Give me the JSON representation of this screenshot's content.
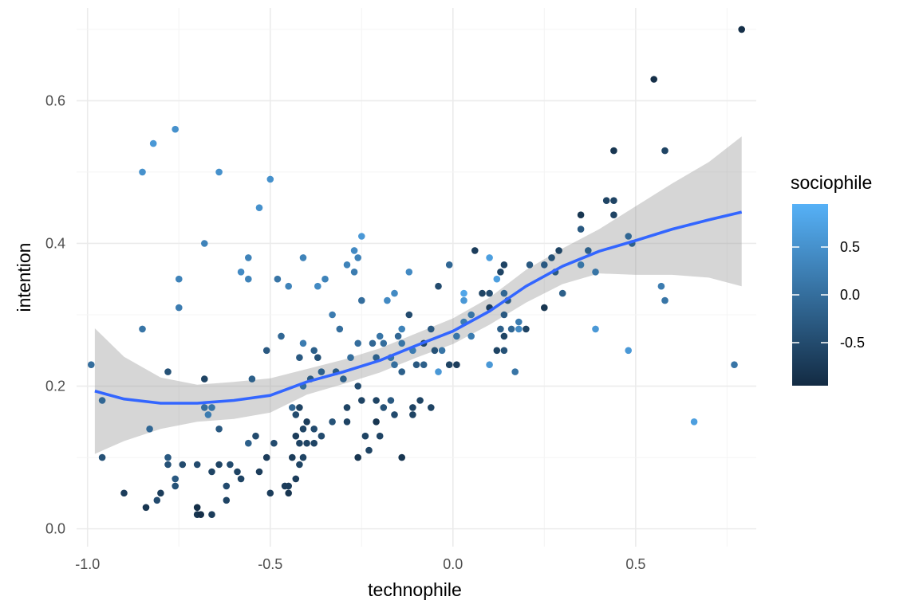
{
  "chart_data": {
    "type": "scatter",
    "xlabel": "technophile",
    "ylabel": "intention",
    "xlim": [
      -1.03,
      0.83
    ],
    "ylim": [
      -0.025,
      0.73
    ],
    "x_ticks": [
      -1.0,
      -0.5,
      0.0,
      0.5
    ],
    "x_tick_labels": [
      "-1.0",
      "-0.5",
      "0.0",
      "0.5"
    ],
    "y_ticks": [
      0.0,
      0.2,
      0.4,
      0.6
    ],
    "y_tick_labels": [
      "0.0",
      "0.2",
      "0.4",
      "0.6"
    ],
    "grid": true,
    "legend": {
      "title": "sociophile",
      "position": "right",
      "range": [
        -0.95,
        0.95
      ],
      "ticks": [
        0.5,
        0.0,
        -0.5
      ],
      "tick_labels": [
        "0.5",
        "0.0",
        "-0.5"
      ],
      "color_low": "#132B43",
      "color_high": "#56B1F7"
    },
    "smooth_color": "#3366FF",
    "ribbon_color": "#999999",
    "points": [
      {
        "x": 0.79,
        "y": 0.7,
        "c": -0.9
      },
      {
        "x": 0.55,
        "y": 0.63,
        "c": -0.9
      },
      {
        "x": 0.58,
        "y": 0.53,
        "c": -0.6
      },
      {
        "x": 0.44,
        "y": 0.53,
        "c": -0.8
      },
      {
        "x": 0.44,
        "y": 0.46,
        "c": -0.6
      },
      {
        "x": 0.42,
        "y": 0.46,
        "c": -0.6
      },
      {
        "x": 0.44,
        "y": 0.44,
        "c": -0.6
      },
      {
        "x": 0.35,
        "y": 0.44,
        "c": -0.8
      },
      {
        "x": 0.35,
        "y": 0.42,
        "c": -0.3
      },
      {
        "x": 0.48,
        "y": 0.41,
        "c": -0.1
      },
      {
        "x": 0.49,
        "y": 0.4,
        "c": -0.2
      },
      {
        "x": 0.37,
        "y": 0.39,
        "c": -0.2
      },
      {
        "x": 0.35,
        "y": 0.37,
        "c": 0.1
      },
      {
        "x": 0.29,
        "y": 0.39,
        "c": -0.6
      },
      {
        "x": 0.27,
        "y": 0.38,
        "c": -0.4
      },
      {
        "x": 0.25,
        "y": 0.37,
        "c": -0.3
      },
      {
        "x": 0.28,
        "y": 0.36,
        "c": -0.3
      },
      {
        "x": 0.21,
        "y": 0.37,
        "c": -0.3
      },
      {
        "x": 0.39,
        "y": 0.36,
        "c": 0.1
      },
      {
        "x": 0.57,
        "y": 0.34,
        "c": 0.2
      },
      {
        "x": 0.58,
        "y": 0.32,
        "c": 0.1
      },
      {
        "x": 0.3,
        "y": 0.33,
        "c": -0.2
      },
      {
        "x": 0.25,
        "y": 0.31,
        "c": -0.8
      },
      {
        "x": 0.39,
        "y": 0.28,
        "c": 0.6
      },
      {
        "x": 0.48,
        "y": 0.25,
        "c": 0.6
      },
      {
        "x": 0.77,
        "y": 0.23,
        "c": 0.1
      },
      {
        "x": 0.66,
        "y": 0.15,
        "c": 0.7
      },
      {
        "x": 0.06,
        "y": 0.39,
        "c": -0.7
      },
      {
        "x": 0.1,
        "y": 0.38,
        "c": 0.7
      },
      {
        "x": 0.14,
        "y": 0.37,
        "c": -0.6
      },
      {
        "x": 0.13,
        "y": 0.36,
        "c": -0.6
      },
      {
        "x": 0.12,
        "y": 0.35,
        "c": 0.7
      },
      {
        "x": 0.08,
        "y": 0.33,
        "c": -0.6
      },
      {
        "x": 0.1,
        "y": 0.33,
        "c": -0.5
      },
      {
        "x": 0.14,
        "y": 0.33,
        "c": -0.1
      },
      {
        "x": 0.15,
        "y": 0.32,
        "c": -0.3
      },
      {
        "x": 0.03,
        "y": 0.33,
        "c": 0.8
      },
      {
        "x": 0.03,
        "y": 0.32,
        "c": 0.6
      },
      {
        "x": 0.1,
        "y": 0.31,
        "c": -0.7
      },
      {
        "x": 0.14,
        "y": 0.3,
        "c": -0.3
      },
      {
        "x": 0.05,
        "y": 0.3,
        "c": 0.1
      },
      {
        "x": 0.03,
        "y": 0.29,
        "c": 0.2
      },
      {
        "x": 0.13,
        "y": 0.28,
        "c": -0.2
      },
      {
        "x": 0.18,
        "y": 0.29,
        "c": 0.2
      },
      {
        "x": 0.16,
        "y": 0.28,
        "c": -0.1
      },
      {
        "x": 0.18,
        "y": 0.28,
        "c": 0.4
      },
      {
        "x": 0.2,
        "y": 0.28,
        "c": -0.6
      },
      {
        "x": 0.14,
        "y": 0.27,
        "c": -0.6
      },
      {
        "x": 0.05,
        "y": 0.27,
        "c": 0.2
      },
      {
        "x": 0.01,
        "y": 0.27,
        "c": 0.1
      },
      {
        "x": 0.12,
        "y": 0.25,
        "c": -0.6
      },
      {
        "x": 0.14,
        "y": 0.25,
        "c": -0.4
      },
      {
        "x": 0.1,
        "y": 0.23,
        "c": 0.6
      },
      {
        "x": 0.17,
        "y": 0.22,
        "c": 0.1
      },
      {
        "x": -0.01,
        "y": 0.37,
        "c": -0.1
      },
      {
        "x": -0.04,
        "y": 0.34,
        "c": -0.5
      },
      {
        "x": -0.12,
        "y": 0.36,
        "c": 0.4
      },
      {
        "x": -0.16,
        "y": 0.33,
        "c": 0.4
      },
      {
        "x": -0.18,
        "y": 0.32,
        "c": 0.4
      },
      {
        "x": -0.14,
        "y": 0.28,
        "c": 0.3
      },
      {
        "x": -0.12,
        "y": 0.3,
        "c": -0.5
      },
      {
        "x": -0.06,
        "y": 0.28,
        "c": -0.3
      },
      {
        "x": -0.08,
        "y": 0.26,
        "c": -0.6
      },
      {
        "x": -0.05,
        "y": 0.25,
        "c": -0.4
      },
      {
        "x": -0.03,
        "y": 0.25,
        "c": 0.1
      },
      {
        "x": -0.01,
        "y": 0.23,
        "c": -0.6
      },
      {
        "x": 0.01,
        "y": 0.23,
        "c": -0.7
      },
      {
        "x": -0.04,
        "y": 0.22,
        "c": 0.6
      },
      {
        "x": -0.11,
        "y": 0.25,
        "c": 0.2
      },
      {
        "x": -0.08,
        "y": 0.23,
        "c": -0.2
      },
      {
        "x": -0.1,
        "y": 0.23,
        "c": -0.3
      },
      {
        "x": -0.14,
        "y": 0.22,
        "c": -0.2
      },
      {
        "x": -0.15,
        "y": 0.27,
        "c": -0.1
      },
      {
        "x": -0.17,
        "y": 0.24,
        "c": 0.1
      },
      {
        "x": -0.16,
        "y": 0.23,
        "c": 0.0
      },
      {
        "x": -0.2,
        "y": 0.27,
        "c": 0.1
      },
      {
        "x": -0.22,
        "y": 0.26,
        "c": -0.1
      },
      {
        "x": -0.21,
        "y": 0.24,
        "c": -0.2
      },
      {
        "x": -0.19,
        "y": 0.26,
        "c": 0.0
      },
      {
        "x": -0.14,
        "y": 0.26,
        "c": 0.1
      },
      {
        "x": -0.25,
        "y": 0.41,
        "c": 0.6
      },
      {
        "x": -0.27,
        "y": 0.39,
        "c": 0.4
      },
      {
        "x": -0.26,
        "y": 0.38,
        "c": 0.3
      },
      {
        "x": -0.29,
        "y": 0.37,
        "c": 0.3
      },
      {
        "x": -0.27,
        "y": 0.36,
        "c": 0.2
      },
      {
        "x": -0.25,
        "y": 0.32,
        "c": 0.0
      },
      {
        "x": -0.33,
        "y": 0.3,
        "c": 0.2
      },
      {
        "x": -0.31,
        "y": 0.28,
        "c": 0.0
      },
      {
        "x": -0.26,
        "y": 0.26,
        "c": 0.0
      },
      {
        "x": -0.28,
        "y": 0.24,
        "c": 0.0
      },
      {
        "x": -0.32,
        "y": 0.22,
        "c": -0.3
      },
      {
        "x": -0.3,
        "y": 0.21,
        "c": -0.2
      },
      {
        "x": -0.26,
        "y": 0.2,
        "c": -0.5
      },
      {
        "x": -0.25,
        "y": 0.18,
        "c": -0.6
      },
      {
        "x": -0.29,
        "y": 0.17,
        "c": -0.6
      },
      {
        "x": -0.21,
        "y": 0.18,
        "c": -0.6
      },
      {
        "x": -0.17,
        "y": 0.18,
        "c": -0.3
      },
      {
        "x": -0.19,
        "y": 0.17,
        "c": -0.4
      },
      {
        "x": -0.16,
        "y": 0.16,
        "c": -0.5
      },
      {
        "x": -0.09,
        "y": 0.18,
        "c": -0.6
      },
      {
        "x": -0.11,
        "y": 0.17,
        "c": -0.6
      },
      {
        "x": -0.06,
        "y": 0.17,
        "c": -0.6
      },
      {
        "x": -0.11,
        "y": 0.16,
        "c": -0.6
      },
      {
        "x": -0.29,
        "y": 0.15,
        "c": -0.6
      },
      {
        "x": -0.33,
        "y": 0.15,
        "c": -0.4
      },
      {
        "x": -0.21,
        "y": 0.15,
        "c": -0.8
      },
      {
        "x": -0.24,
        "y": 0.13,
        "c": -0.6
      },
      {
        "x": -0.2,
        "y": 0.13,
        "c": -0.6
      },
      {
        "x": -0.23,
        "y": 0.11,
        "c": -0.6
      },
      {
        "x": -0.26,
        "y": 0.1,
        "c": -0.8
      },
      {
        "x": -0.14,
        "y": 0.1,
        "c": -0.8
      },
      {
        "x": -0.41,
        "y": 0.38,
        "c": 0.3
      },
      {
        "x": -0.45,
        "y": 0.34,
        "c": 0.3
      },
      {
        "x": -0.37,
        "y": 0.34,
        "c": 0.4
      },
      {
        "x": -0.35,
        "y": 0.35,
        "c": 0.3
      },
      {
        "x": -0.48,
        "y": 0.35,
        "c": 0.1
      },
      {
        "x": -0.47,
        "y": 0.27,
        "c": -0.1
      },
      {
        "x": -0.41,
        "y": 0.26,
        "c": 0.2
      },
      {
        "x": -0.38,
        "y": 0.25,
        "c": -0.2
      },
      {
        "x": -0.42,
        "y": 0.24,
        "c": -0.3
      },
      {
        "x": -0.37,
        "y": 0.24,
        "c": -0.4
      },
      {
        "x": -0.51,
        "y": 0.25,
        "c": -0.3
      },
      {
        "x": -0.36,
        "y": 0.22,
        "c": -0.2
      },
      {
        "x": -0.39,
        "y": 0.21,
        "c": -0.3
      },
      {
        "x": -0.41,
        "y": 0.2,
        "c": 0.0
      },
      {
        "x": -0.55,
        "y": 0.21,
        "c": -0.2
      },
      {
        "x": -0.44,
        "y": 0.17,
        "c": -0.1
      },
      {
        "x": -0.42,
        "y": 0.17,
        "c": -0.6
      },
      {
        "x": -0.43,
        "y": 0.16,
        "c": -0.5
      },
      {
        "x": -0.4,
        "y": 0.15,
        "c": -0.7
      },
      {
        "x": -0.41,
        "y": 0.14,
        "c": -0.6
      },
      {
        "x": -0.38,
        "y": 0.14,
        "c": -0.5
      },
      {
        "x": -0.43,
        "y": 0.13,
        "c": -0.7
      },
      {
        "x": -0.4,
        "y": 0.12,
        "c": -0.6
      },
      {
        "x": -0.36,
        "y": 0.13,
        "c": -0.5
      },
      {
        "x": -0.49,
        "y": 0.12,
        "c": -0.5
      },
      {
        "x": -0.42,
        "y": 0.12,
        "c": -0.6
      },
      {
        "x": -0.38,
        "y": 0.12,
        "c": -0.6
      },
      {
        "x": -0.44,
        "y": 0.1,
        "c": -0.7
      },
      {
        "x": -0.41,
        "y": 0.1,
        "c": -0.6
      },
      {
        "x": -0.42,
        "y": 0.09,
        "c": -0.6
      },
      {
        "x": -0.43,
        "y": 0.07,
        "c": -0.7
      },
      {
        "x": -0.46,
        "y": 0.06,
        "c": -0.7
      },
      {
        "x": -0.45,
        "y": 0.06,
        "c": -0.7
      },
      {
        "x": -0.5,
        "y": 0.05,
        "c": -0.7
      },
      {
        "x": -0.45,
        "y": 0.05,
        "c": -0.8
      },
      {
        "x": -0.51,
        "y": 0.1,
        "c": -0.7
      },
      {
        "x": -0.53,
        "y": 0.08,
        "c": -0.7
      },
      {
        "x": -0.56,
        "y": 0.12,
        "c": -0.2
      },
      {
        "x": -0.54,
        "y": 0.13,
        "c": -0.5
      },
      {
        "x": -0.5,
        "y": 0.49,
        "c": 0.5
      },
      {
        "x": -0.53,
        "y": 0.45,
        "c": 0.5
      },
      {
        "x": -0.56,
        "y": 0.38,
        "c": 0.3
      },
      {
        "x": -0.58,
        "y": 0.36,
        "c": 0.4
      },
      {
        "x": -0.56,
        "y": 0.35,
        "c": 0.3
      },
      {
        "x": -0.64,
        "y": 0.5,
        "c": 0.5
      },
      {
        "x": -0.68,
        "y": 0.4,
        "c": 0.3
      },
      {
        "x": -0.64,
        "y": 0.14,
        "c": -0.3
      },
      {
        "x": -0.68,
        "y": 0.21,
        "c": -0.6
      },
      {
        "x": -0.68,
        "y": 0.17,
        "c": 0.0
      },
      {
        "x": -0.66,
        "y": 0.17,
        "c": 0.1
      },
      {
        "x": -0.67,
        "y": 0.16,
        "c": 0.2
      },
      {
        "x": -0.64,
        "y": 0.09,
        "c": -0.6
      },
      {
        "x": -0.61,
        "y": 0.09,
        "c": -0.5
      },
      {
        "x": -0.59,
        "y": 0.08,
        "c": -0.6
      },
      {
        "x": -0.58,
        "y": 0.07,
        "c": -0.6
      },
      {
        "x": -0.62,
        "y": 0.06,
        "c": -0.5
      },
      {
        "x": -0.66,
        "y": 0.08,
        "c": -0.6
      },
      {
        "x": -0.62,
        "y": 0.04,
        "c": -0.6
      },
      {
        "x": -0.66,
        "y": 0.02,
        "c": -0.7
      },
      {
        "x": -0.7,
        "y": 0.03,
        "c": -0.9
      },
      {
        "x": -0.7,
        "y": 0.02,
        "c": -0.8
      },
      {
        "x": -0.69,
        "y": 0.02,
        "c": -0.9
      },
      {
        "x": -0.7,
        "y": 0.09,
        "c": -0.5
      },
      {
        "x": -0.74,
        "y": 0.09,
        "c": -0.5
      },
      {
        "x": -0.76,
        "y": 0.06,
        "c": -0.4
      },
      {
        "x": -0.76,
        "y": 0.07,
        "c": -0.3
      },
      {
        "x": -0.78,
        "y": 0.1,
        "c": -0.3
      },
      {
        "x": -0.78,
        "y": 0.09,
        "c": -0.4
      },
      {
        "x": -0.78,
        "y": 0.22,
        "c": -0.4
      },
      {
        "x": -0.75,
        "y": 0.35,
        "c": 0.3
      },
      {
        "x": -0.75,
        "y": 0.31,
        "c": 0.2
      },
      {
        "x": -0.76,
        "y": 0.56,
        "c": 0.5
      },
      {
        "x": -0.82,
        "y": 0.54,
        "c": 0.6
      },
      {
        "x": -0.85,
        "y": 0.5,
        "c": 0.5
      },
      {
        "x": -0.85,
        "y": 0.28,
        "c": 0.1
      },
      {
        "x": -0.83,
        "y": 0.14,
        "c": -0.1
      },
      {
        "x": -0.8,
        "y": 0.05,
        "c": -0.7
      },
      {
        "x": -0.81,
        "y": 0.04,
        "c": -0.5
      },
      {
        "x": -0.84,
        "y": 0.03,
        "c": -0.8
      },
      {
        "x": -0.9,
        "y": 0.05,
        "c": -0.7
      },
      {
        "x": -0.96,
        "y": 0.1,
        "c": -0.4
      },
      {
        "x": -0.96,
        "y": 0.18,
        "c": -0.1
      },
      {
        "x": -0.99,
        "y": 0.23,
        "c": 0.0
      }
    ],
    "smooth": [
      {
        "x": -0.98,
        "y": 0.193,
        "lo": 0.105,
        "hi": 0.281
      },
      {
        "x": -0.9,
        "y": 0.182,
        "lo": 0.123,
        "hi": 0.241
      },
      {
        "x": -0.8,
        "y": 0.176,
        "lo": 0.14,
        "hi": 0.212
      },
      {
        "x": -0.7,
        "y": 0.176,
        "lo": 0.15,
        "hi": 0.202
      },
      {
        "x": -0.6,
        "y": 0.18,
        "lo": 0.154,
        "hi": 0.206
      },
      {
        "x": -0.5,
        "y": 0.187,
        "lo": 0.163,
        "hi": 0.211
      },
      {
        "x": -0.4,
        "y": 0.206,
        "lo": 0.188,
        "hi": 0.224
      },
      {
        "x": -0.3,
        "y": 0.22,
        "lo": 0.203,
        "hi": 0.237
      },
      {
        "x": -0.2,
        "y": 0.236,
        "lo": 0.219,
        "hi": 0.253
      },
      {
        "x": -0.1,
        "y": 0.257,
        "lo": 0.24,
        "hi": 0.274
      },
      {
        "x": 0.0,
        "y": 0.277,
        "lo": 0.259,
        "hi": 0.295
      },
      {
        "x": 0.1,
        "y": 0.305,
        "lo": 0.286,
        "hi": 0.324
      },
      {
        "x": 0.2,
        "y": 0.34,
        "lo": 0.317,
        "hi": 0.363
      },
      {
        "x": 0.3,
        "y": 0.368,
        "lo": 0.343,
        "hi": 0.393
      },
      {
        "x": 0.4,
        "y": 0.389,
        "lo": 0.358,
        "hi": 0.42
      },
      {
        "x": 0.5,
        "y": 0.404,
        "lo": 0.356,
        "hi": 0.452
      },
      {
        "x": 0.6,
        "y": 0.42,
        "lo": 0.356,
        "hi": 0.484
      },
      {
        "x": 0.7,
        "y": 0.433,
        "lo": 0.352,
        "hi": 0.514
      },
      {
        "x": 0.79,
        "y": 0.444,
        "lo": 0.34,
        "hi": 0.55
      }
    ]
  }
}
